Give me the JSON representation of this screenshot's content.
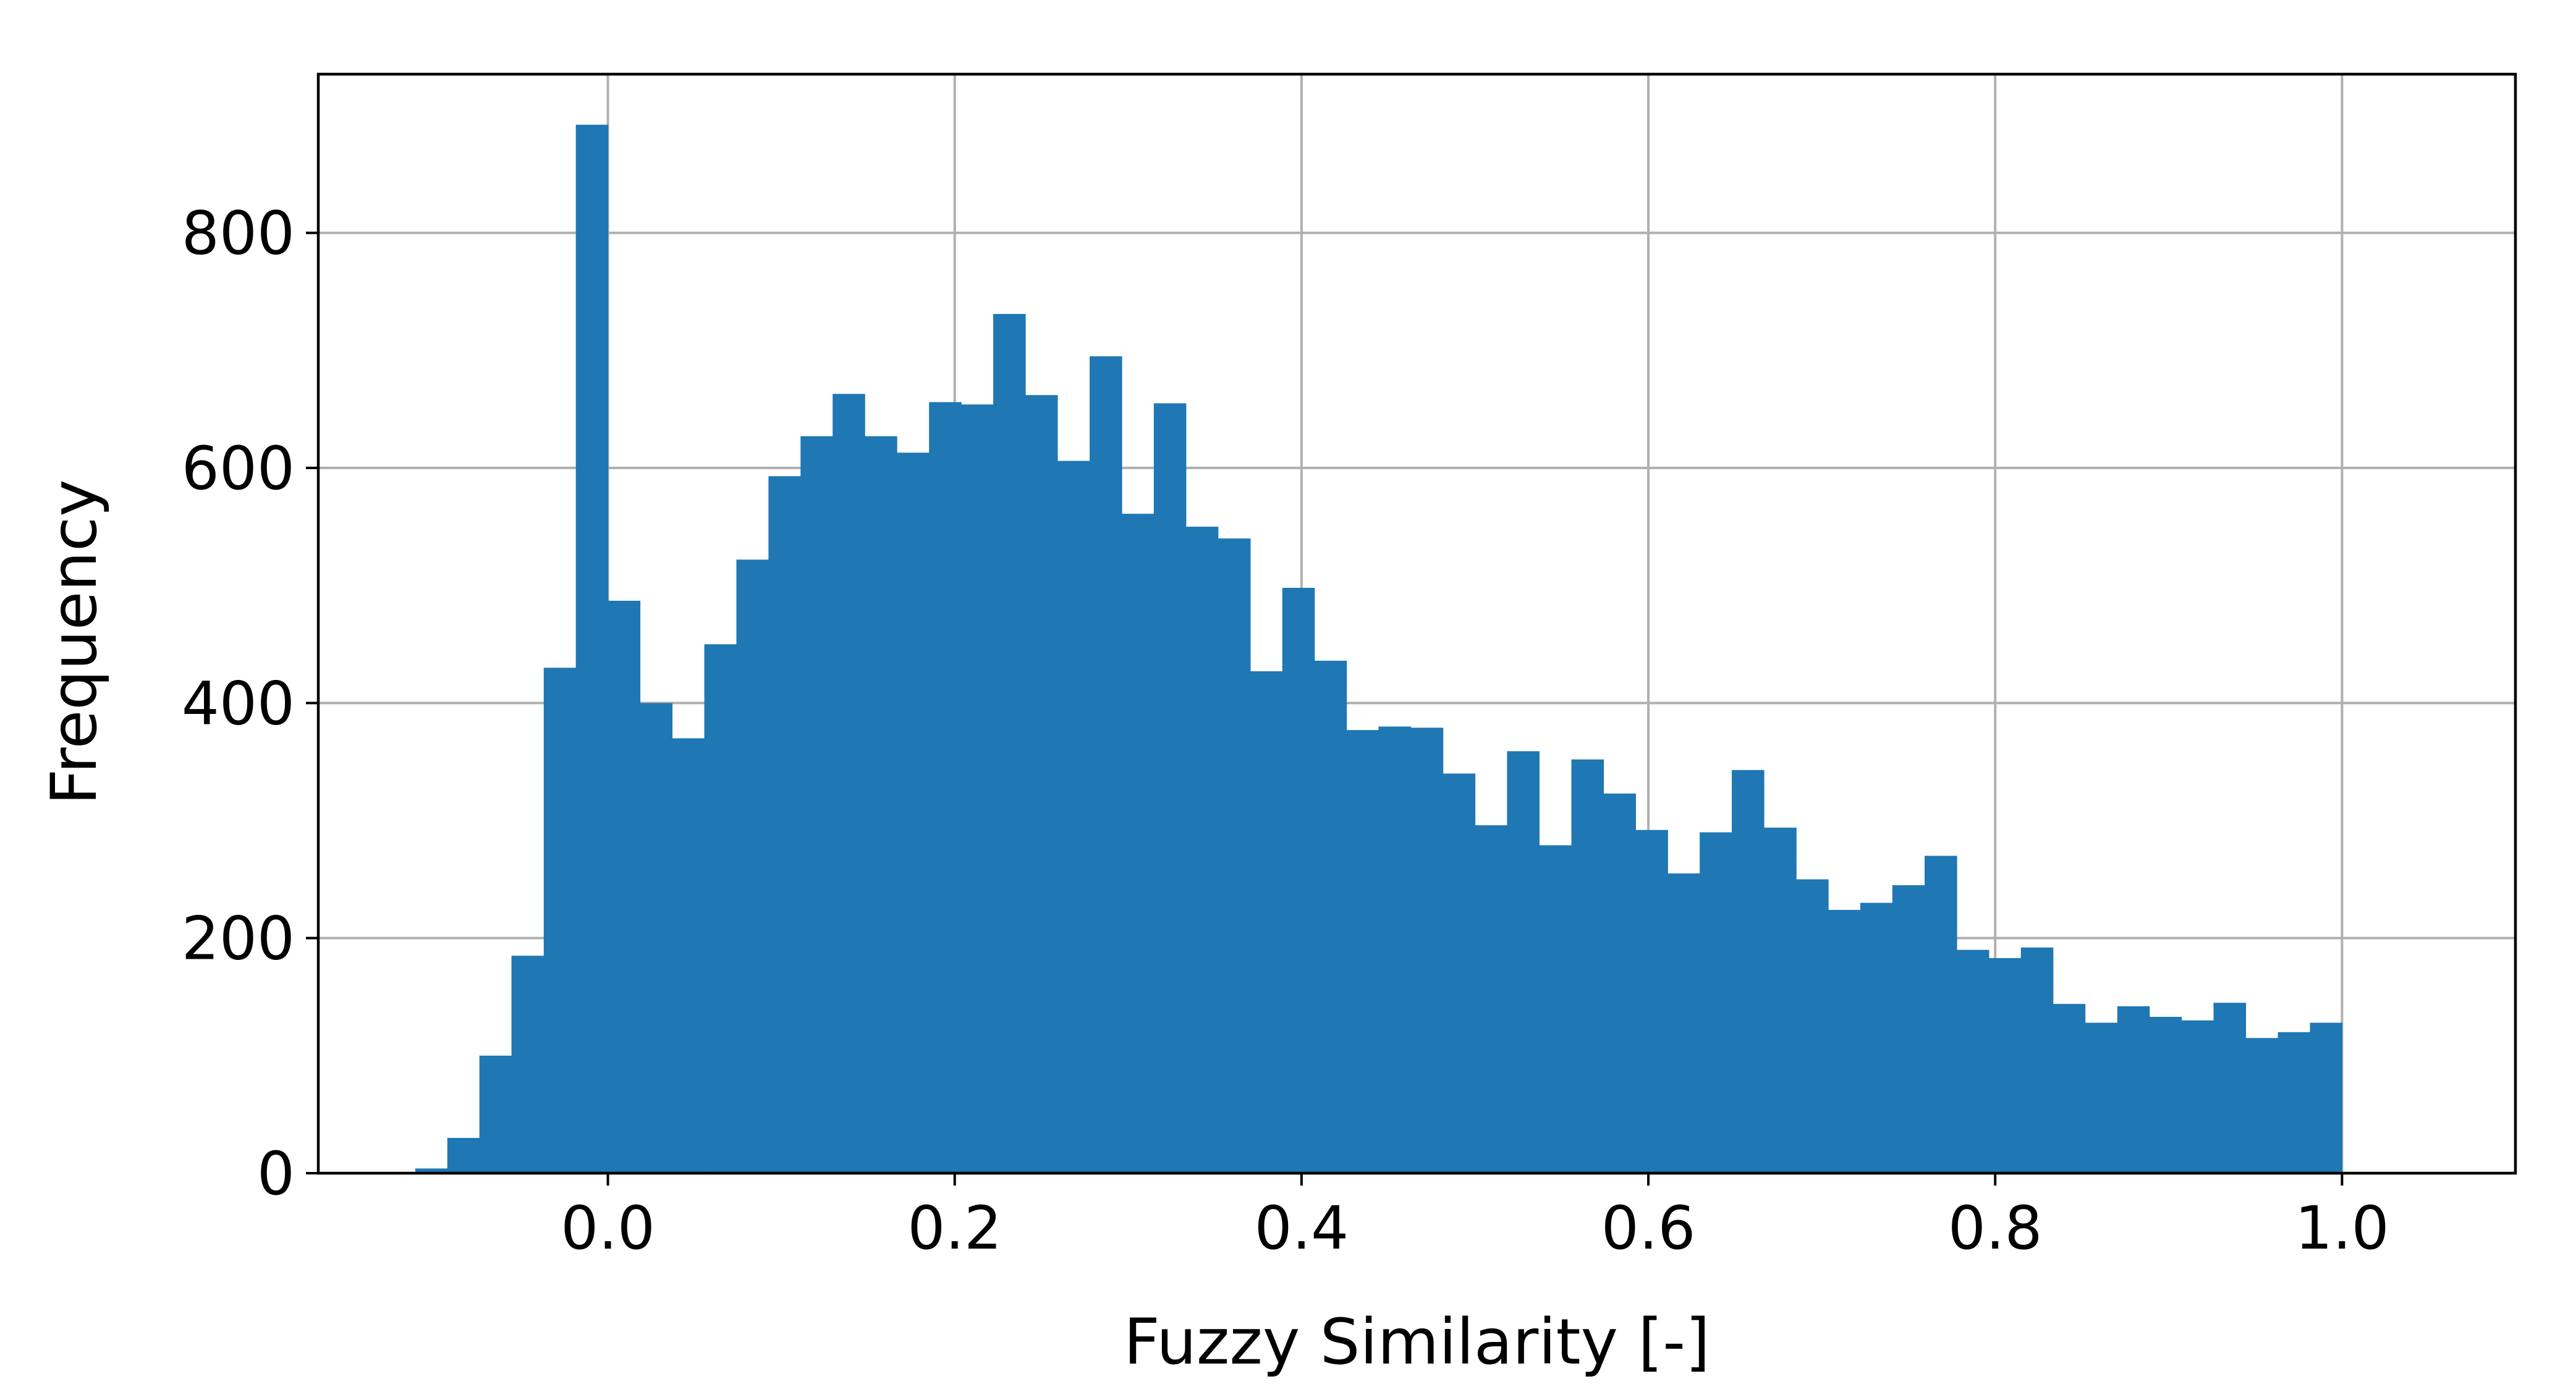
{
  "chart_data": {
    "type": "bar",
    "title": "",
    "xlabel": "Fuzzy Similarity [-]",
    "ylabel": "Frequency",
    "xlim": [
      -0.167,
      1.1
    ],
    "ylim": [
      0,
      935
    ],
    "grid": true,
    "bar_color": "#1f77b4",
    "grid_color": "#b0b0b0",
    "bin_width": 0.01852,
    "x_ticks": [
      {
        "value": 0.0,
        "label": "0.0"
      },
      {
        "value": 0.2,
        "label": "0.2"
      },
      {
        "value": 0.4,
        "label": "0.4"
      },
      {
        "value": 0.6,
        "label": "0.6"
      },
      {
        "value": 0.8,
        "label": "0.8"
      },
      {
        "value": 1.0,
        "label": "1.0"
      }
    ],
    "y_ticks": [
      {
        "value": 0,
        "label": "0"
      },
      {
        "value": 200,
        "label": "200"
      },
      {
        "value": 400,
        "label": "400"
      },
      {
        "value": 600,
        "label": "600"
      },
      {
        "value": 800,
        "label": "800"
      }
    ],
    "bins_start": [
      -0.1296,
      -0.1111,
      -0.0926,
      -0.0741,
      -0.0556,
      -0.037,
      -0.0185,
      0.0,
      0.0185,
      0.037,
      0.0556,
      0.0741,
      0.0926,
      0.1111,
      0.1296,
      0.1481,
      0.1667,
      0.1852,
      0.2037,
      0.2222,
      0.2407,
      0.2593,
      0.2778,
      0.2963,
      0.3148,
      0.3333,
      0.3519,
      0.3704,
      0.3889,
      0.4074,
      0.4259,
      0.4444,
      0.463,
      0.4815,
      0.5,
      0.5185,
      0.537,
      0.5556,
      0.5741,
      0.5926,
      0.6111,
      0.6296,
      0.6481,
      0.6667,
      0.6852,
      0.7037,
      0.7222,
      0.7407,
      0.7593,
      0.7778,
      0.7963,
      0.8148,
      0.8333,
      0.8519,
      0.8704,
      0.8889,
      0.9074,
      0.9259,
      0.9444,
      0.963,
      0.9815
    ],
    "values": [
      1,
      4,
      30,
      100,
      185,
      430,
      892,
      487,
      400,
      370,
      450,
      522,
      593,
      627,
      663,
      627,
      613,
      656,
      654,
      731,
      662,
      606,
      695,
      561,
      655,
      550,
      540,
      427,
      498,
      436,
      377,
      380,
      379,
      340,
      296,
      359,
      279,
      352,
      323,
      292,
      255,
      290,
      343,
      294,
      250,
      224,
      230,
      245,
      270,
      190,
      183,
      192,
      144,
      128,
      142,
      133,
      130,
      145,
      115,
      120,
      128
    ]
  }
}
